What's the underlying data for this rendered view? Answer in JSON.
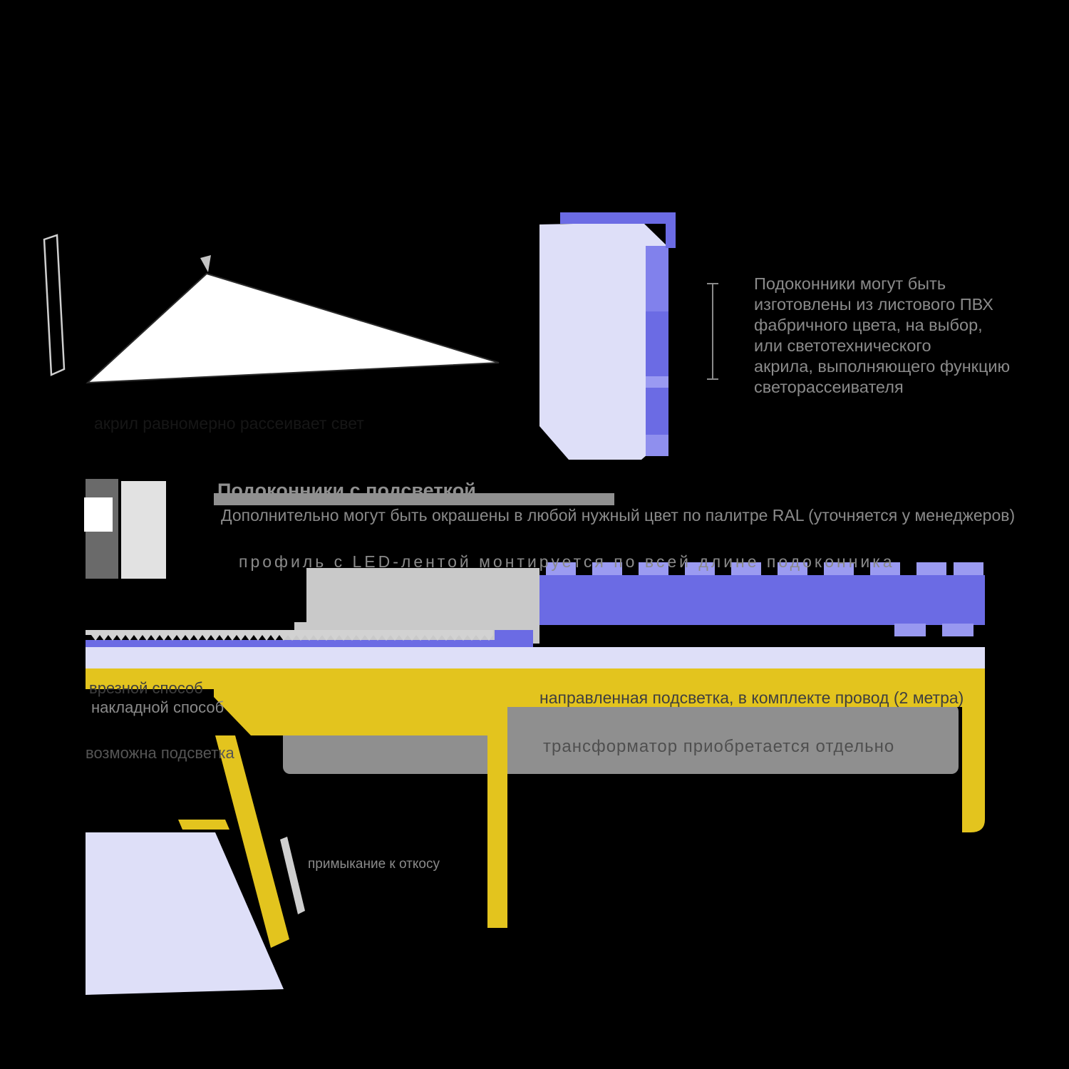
{
  "colors": {
    "background": "#000000",
    "white": "#ffffff",
    "lavender": "#dedff8",
    "periwinkle": "#6b6be4",
    "periwinkle_light": "#9b9bf1",
    "periwinkle_soft": "#8f8fee",
    "periwinkle_pale": "#9a9af2",
    "periwinkle_top": "#8181ec",
    "tab_blue": "#9898f0",
    "yellow": "#e3c41e",
    "gray_slab": "#c9c9c9",
    "gray_strip": "#d2d2d2",
    "gray_panel": "#8f8f8f",
    "gray_profile_dark": "#6a6a6a",
    "gray_profile_light": "#e2e2e2",
    "gray_pointer": "#cfcfcf",
    "gray_text": "#8a8a8a"
  },
  "texts": {
    "heading": "Подоконники с подсветкой",
    "paint_note": "Дополнительно могут быть окрашены в любой нужный цвет по палитре RAL (уточняется у менеджеров)",
    "led_row_note": "профиль с LED-лентой монтируется по всей длине подоконника",
    "method_flush": "врезной способ",
    "method_surface": "накладной способ",
    "cable_note": "направленная подсветка, в комплекте провод (2 метра)",
    "transformer_note": "трансформатор приобретается отдельно",
    "backlight_note": "возможна подсветка",
    "slope_label": "примыкание к откосу",
    "diffuse_caption": "акрил равномерно рассеивает свет"
  },
  "paragraph": {
    "lines": [
      "Подоконники могут быть",
      "изготовлены из листового ПВХ",
      "фабричного цвета, на выбор,",
      "или светотехнического",
      "акрила, выполняющего функцию",
      "светорассеивателя"
    ]
  }
}
